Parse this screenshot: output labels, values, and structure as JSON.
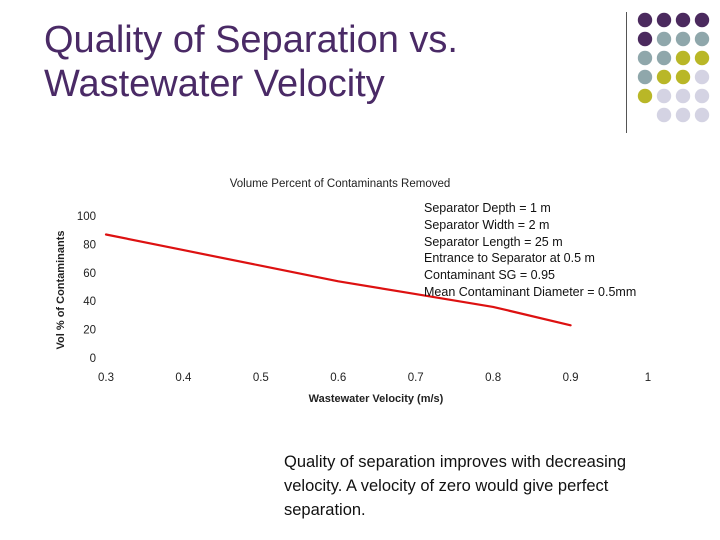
{
  "slide": {
    "title_line1": "Quality of Separation vs.",
    "title_line2": "Wastewater Velocity",
    "caption": "Quality of separation improves with decreasing velocity.  A velocity of zero would give perfect separation.",
    "title_color": "#4a2a66",
    "dot_colors": {
      "purple": "#4b2a5e",
      "teal": "#8fa7ab",
      "olive": "#b9b727",
      "lavender": "#d4d3e3"
    }
  },
  "chart_data": {
    "type": "line",
    "title": "Volume Percent of Contaminants Removed",
    "xlabel": "Wastewater Velocity (m/s)",
    "ylabel": "Vol % of Contaminants",
    "xlim": [
      0.3,
      1
    ],
    "ylim": [
      0,
      100
    ],
    "x_ticks": [
      "0.3",
      "0.4",
      "0.5",
      "0.6",
      "0.7",
      "0.8",
      "0.9",
      "1"
    ],
    "y_ticks": [
      "0",
      "20",
      "40",
      "60",
      "80",
      "100"
    ],
    "grid": false,
    "line_color": "#dd1111",
    "series": [
      {
        "x": [
          0.3,
          0.4,
          0.5,
          0.6,
          0.7,
          0.8,
          0.9
        ],
        "y": [
          87,
          76,
          65,
          54,
          45,
          36,
          23
        ]
      }
    ],
    "annotations": [
      "Separator Depth = 1 m",
      "Separator Width = 2 m",
      "Separator Length = 25 m",
      "Entrance to Separator at 0.5 m",
      "Contaminant SG = 0.95",
      "Mean Contaminant Diameter = 0.5mm"
    ]
  }
}
